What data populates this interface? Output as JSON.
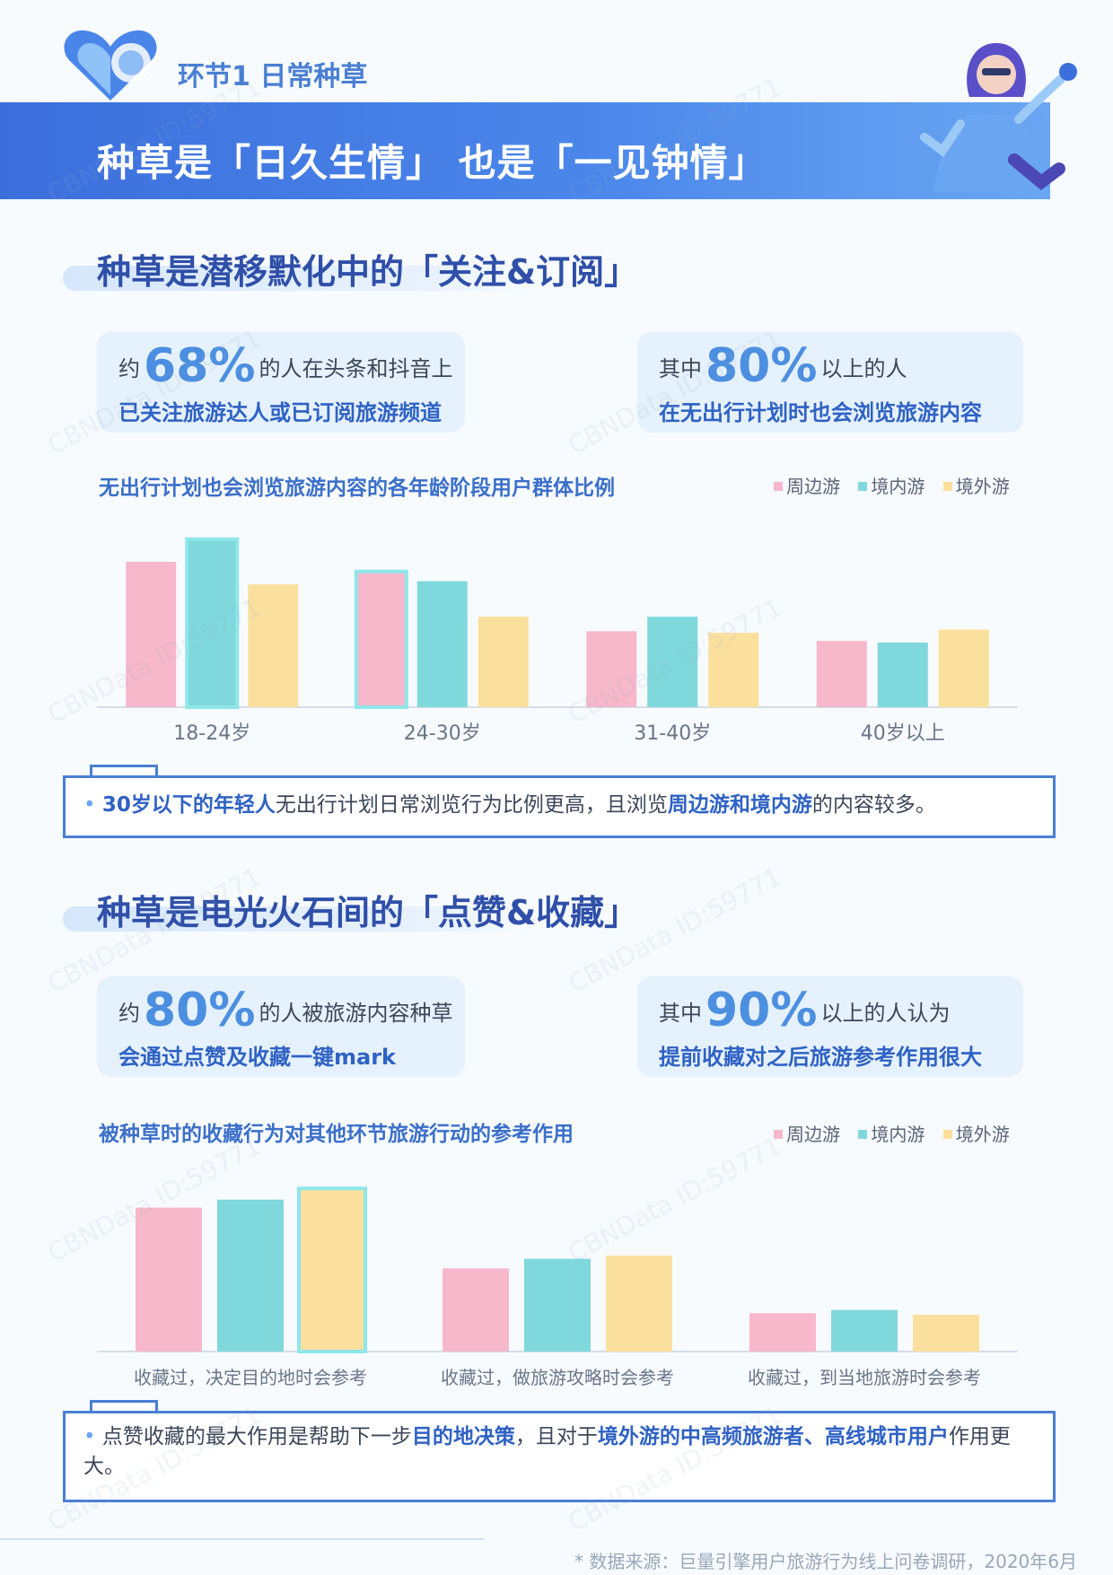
{
  "header": {
    "section_label": "环节1 日常种草",
    "banner_title": "种草是「日久生情」 也是「一见钟情」"
  },
  "section1": {
    "heading": "种草是潜移默化中的「关注&订阅」",
    "stat_left": {
      "pre": "约",
      "big": "68%",
      "post": "的人在头条和抖音上",
      "line2": "已关注旅游达人或已订阅旅游频道"
    },
    "stat_right": {
      "pre": "其中",
      "big": "80%",
      "post": "以上的人",
      "line2": "在无出行计划时也会浏览旅游内容"
    },
    "chart_title": "无出行计划也会浏览旅游内容的各年龄阶段用户群体比例",
    "legend": [
      "周边游",
      "境内游",
      "境外游"
    ],
    "note_parts": [
      "30岁以下的年轻人",
      "无出行计划日常浏览行为比例更高，且浏览",
      "周边游和境内游",
      "的内容较多。"
    ]
  },
  "section2": {
    "heading": "种草是电光火石间的「点赞&收藏」",
    "stat_left": {
      "pre": "约",
      "big": "80%",
      "post": "的人被旅游内容种草",
      "line2": "会通过点赞及收藏一键mark"
    },
    "stat_right": {
      "pre": "其中",
      "big": "90%",
      "post": "以上的人认为",
      "line2": "提前收藏对之后旅游参考作用很大"
    },
    "chart_title": "被种草时的收藏行为对其他环节旅游行动的参考作用",
    "legend": [
      "周边游",
      "境内游",
      "境外游"
    ],
    "note_parts": [
      "点赞收藏的最大作用是帮助下一步",
      "目的地决策",
      "，且对于",
      "境外游的中高频旅游者、高线城市用户",
      "作用更大。"
    ]
  },
  "footer": "* 数据来源：巨量引擎用户旅游行为线上问卷调研，2020年6月",
  "watermark": "CBNData ID:59771",
  "colors": {
    "pink": "#f7b8cb",
    "teal": "#7fd8dc",
    "yellow": "#fbe09d",
    "accent": "#4a7fd3",
    "highlight": "#8ee6ea"
  },
  "chart_data": [
    {
      "type": "bar",
      "title": "无出行计划也会浏览旅游内容的各年龄阶段用户群体比例",
      "categories": [
        "18-24岁",
        "24-30岁",
        "31-40岁",
        "40岁以上"
      ],
      "series": [
        {
          "name": "周边游",
          "values": [
            90,
            84,
            47,
            41
          ]
        },
        {
          "name": "境内游",
          "values": [
            104,
            78,
            56,
            40
          ]
        },
        {
          "name": "境外游",
          "values": [
            76,
            56,
            46,
            48
          ]
        }
      ],
      "ylim": [
        0,
        110
      ],
      "grid": false,
      "legend_position": "top-right"
    },
    {
      "type": "bar",
      "title": "被种草时的收藏行为对其他环节旅游行动的参考作用",
      "categories": [
        "收藏过，决定目的地时会参考",
        "收藏过，做旅游攻略时会参考",
        "收藏过，到当地旅游时会参考"
      ],
      "series": [
        {
          "name": "周边游",
          "values": [
            90,
            52,
            24
          ]
        },
        {
          "name": "境内游",
          "values": [
            95,
            58,
            26
          ]
        },
        {
          "name": "境外游",
          "values": [
            102,
            60,
            23
          ]
        }
      ],
      "ylim": [
        0,
        110
      ],
      "grid": false,
      "legend_position": "top-right"
    }
  ]
}
